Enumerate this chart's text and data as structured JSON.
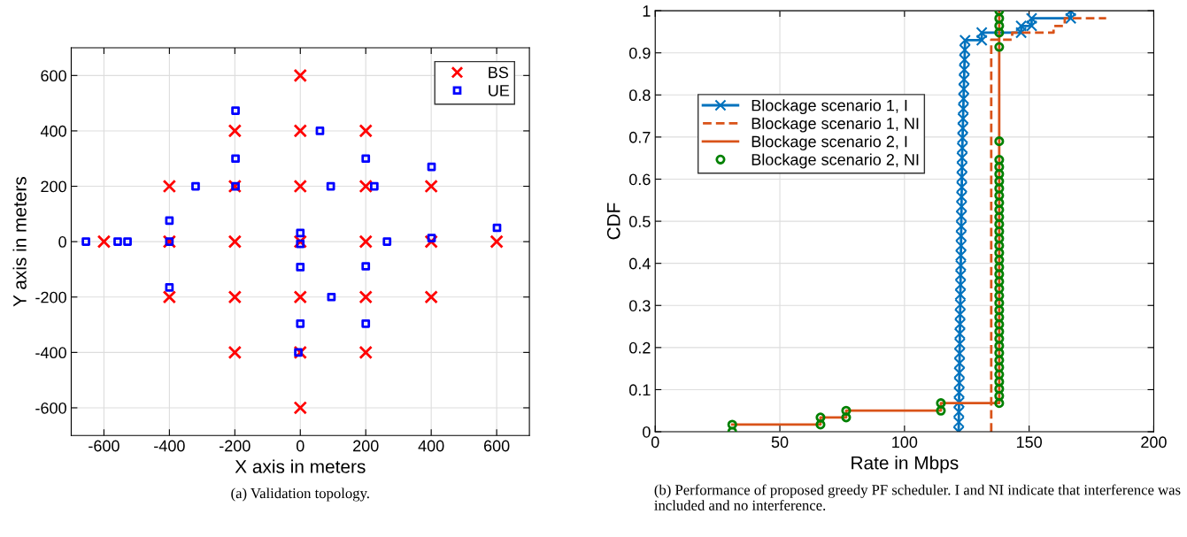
{
  "chart_data": [
    {
      "type": "scatter",
      "xlabel": "X axis in meters",
      "ylabel": "Y axis in meters",
      "xlim": [
        -700,
        700
      ],
      "ylim": [
        -700,
        700
      ],
      "xticks": [
        -600,
        -400,
        -200,
        0,
        200,
        400,
        600
      ],
      "yticks": [
        -600,
        -400,
        -200,
        0,
        200,
        400,
        600
      ],
      "grid": true,
      "legend": "top right",
      "annotations": [
        "(a) Validation topology."
      ],
      "series": [
        {
          "name": "BS",
          "color": "#ff0000",
          "marker": "cross",
          "x": [
            0,
            -200,
            0,
            200,
            -400,
            -200,
            0,
            200,
            400,
            -600,
            -400,
            -200,
            0,
            200,
            400,
            600,
            -400,
            -200,
            0,
            200,
            400,
            -200,
            0,
            200,
            0
          ],
          "values": [
            600,
            400,
            400,
            400,
            200,
            200,
            200,
            200,
            200,
            0,
            0,
            0,
            0,
            0,
            0,
            0,
            -200,
            -200,
            -200,
            -200,
            -200,
            -400,
            -400,
            -400,
            -600
          ]
        },
        {
          "name": "UE",
          "color": "#0000ff",
          "marker": "square",
          "x": [
            -655,
            -558,
            -528,
            -400,
            -400,
            -400,
            -320,
            -198,
            -198,
            -198,
            60,
            0,
            0,
            0,
            93,
            95,
            0,
            -6,
            200,
            226,
            200,
            200,
            265,
            401,
            401,
            601
          ],
          "values": [
            0,
            0,
            0,
            76,
            0,
            -165,
            200,
            473,
            300,
            200,
            400,
            31,
            -8,
            -92,
            200,
            -200,
            -296,
            -400,
            300,
            200,
            -89,
            -296,
            0,
            270,
            13,
            50
          ]
        }
      ]
    },
    {
      "type": "line",
      "xlabel": "Rate in Mbps",
      "ylabel": "CDF",
      "xlim": [
        0,
        200
      ],
      "ylim": [
        0,
        1
      ],
      "xticks": [
        0,
        50,
        100,
        150,
        200
      ],
      "yticks": [
        0,
        0.1,
        0.2,
        0.3,
        0.4,
        0.5,
        0.6,
        0.7,
        0.8,
        0.9,
        1
      ],
      "grid": true,
      "legend": "top left",
      "annotations": [
        "(b) Performance of proposed greedy PF scheduler. I and NI indicate that interference was included and no interference."
      ],
      "series": [
        {
          "name": "Blockage scenario 1, I",
          "color": "#0072bd",
          "marker": "cross",
          "line_style": "solid",
          "x": [
            121.7,
            121.8,
            121.8,
            121.9,
            121.9,
            122.0,
            122.0,
            122.1,
            122.1,
            122.2,
            122.2,
            122.3,
            122.3,
            122.4,
            122.4,
            122.5,
            122.5,
            122.6,
            122.6,
            122.7,
            122.7,
            122.8,
            122.8,
            122.9,
            122.9,
            123.0,
            123.0,
            123.1,
            123.1,
            123.2,
            123.3,
            123.4,
            123.5,
            123.6,
            123.7,
            123.8,
            123.9,
            124.0,
            124.1,
            124.2,
            124.3,
            131,
            131,
            146.8,
            146.8,
            151,
            151,
            166.7,
            166.7
          ],
          "values": [
            0,
            0.023,
            0.047,
            0.07,
            0.093,
            0.116,
            0.14,
            0.163,
            0.186,
            0.209,
            0.233,
            0.256,
            0.279,
            0.302,
            0.326,
            0.349,
            0.372,
            0.395,
            0.419,
            0.442,
            0.465,
            0.488,
            0.512,
            0.535,
            0.558,
            0.581,
            0.605,
            0.628,
            0.651,
            0.674,
            0.698,
            0.721,
            0.744,
            0.767,
            0.791,
            0.814,
            0.837,
            0.86,
            0.884,
            0.907,
            0.93,
            0.93,
            0.948,
            0.948,
            0.964,
            0.964,
            0.982,
            0.982,
            1.0
          ]
        },
        {
          "name": "Blockage scenario 1, NI",
          "color": "#d95319",
          "marker": "none",
          "line_style": "dashed",
          "x": [
            134.8,
            134.8,
            143.2,
            143.2,
            159.8,
            159.8,
            164.3,
            164.3,
            180.9
          ],
          "values": [
            0,
            0.931,
            0.931,
            0.948,
            0.948,
            0.964,
            0.964,
            0.982,
            0.982
          ]
        },
        {
          "name": "Blockage scenario 2, I",
          "color": "#d95319",
          "marker": "none",
          "line_style": "solid",
          "x": [
            30.9,
            66.3,
            66.3,
            76.6,
            76.6,
            114.6,
            114.6,
            138,
            138
          ],
          "values": [
            0.017,
            0.017,
            0.034,
            0.034,
            0.05,
            0.05,
            0.068,
            0.068,
            1.0
          ]
        },
        {
          "name": "Blockage scenario 2, NI",
          "type": "scatter",
          "color": "#008000",
          "marker": "circle",
          "x": [
            30.9,
            30.9,
            66.3,
            66.3,
            76.6,
            76.6,
            114.6,
            114.6,
            138,
            138,
            138,
            138,
            138,
            138,
            138,
            138,
            138,
            138,
            138,
            138,
            138,
            138,
            138,
            138,
            138,
            138,
            138,
            138,
            138,
            138,
            138,
            138,
            138,
            138,
            138,
            138,
            138,
            138,
            138,
            138,
            138,
            138,
            138,
            138,
            138,
            138,
            138,
            138,
            138
          ],
          "values": [
            0,
            0.017,
            0.017,
            0.034,
            0.034,
            0.05,
            0.05,
            0.068,
            0.068,
            0.085,
            0.102,
            0.119,
            0.136,
            0.153,
            0.17,
            0.187,
            0.204,
            0.221,
            0.238,
            0.255,
            0.272,
            0.289,
            0.306,
            0.323,
            0.34,
            0.357,
            0.374,
            0.391,
            0.408,
            0.425,
            0.442,
            0.459,
            0.476,
            0.493,
            0.51,
            0.527,
            0.544,
            0.561,
            0.578,
            0.595,
            0.612,
            0.629,
            0.646,
            0.69,
            0.914,
            0.948,
            0.964,
            0.982,
            1.0
          ]
        }
      ]
    }
  ]
}
